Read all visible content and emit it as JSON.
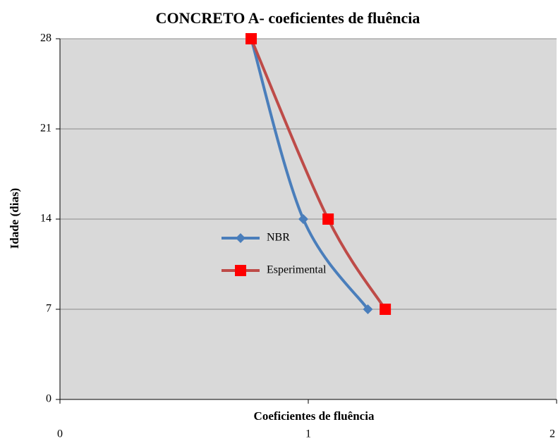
{
  "chart_data": {
    "type": "line",
    "title": "CONCRETO A- coeficientes de fluência",
    "x_label": "Coeficientes de fluência",
    "y_label": "Idade (dias)",
    "xlim": [
      0,
      2
    ],
    "xticks": [
      0,
      1,
      2
    ],
    "ylim": [
      0,
      28
    ],
    "yticks": [
      0,
      7,
      14,
      21,
      28
    ],
    "grid": true,
    "series": [
      {
        "name": "NBR",
        "color": "#4a7ebb",
        "marker": "diamond",
        "x": [
          0.77,
          0.98,
          1.24
        ],
        "values": [
          28,
          14,
          7
        ]
      },
      {
        "name": "Esperimental",
        "color": "#be4b48",
        "marker": "square",
        "x": [
          0.77,
          1.08,
          1.31
        ],
        "values": [
          28,
          14,
          7
        ]
      }
    ]
  }
}
